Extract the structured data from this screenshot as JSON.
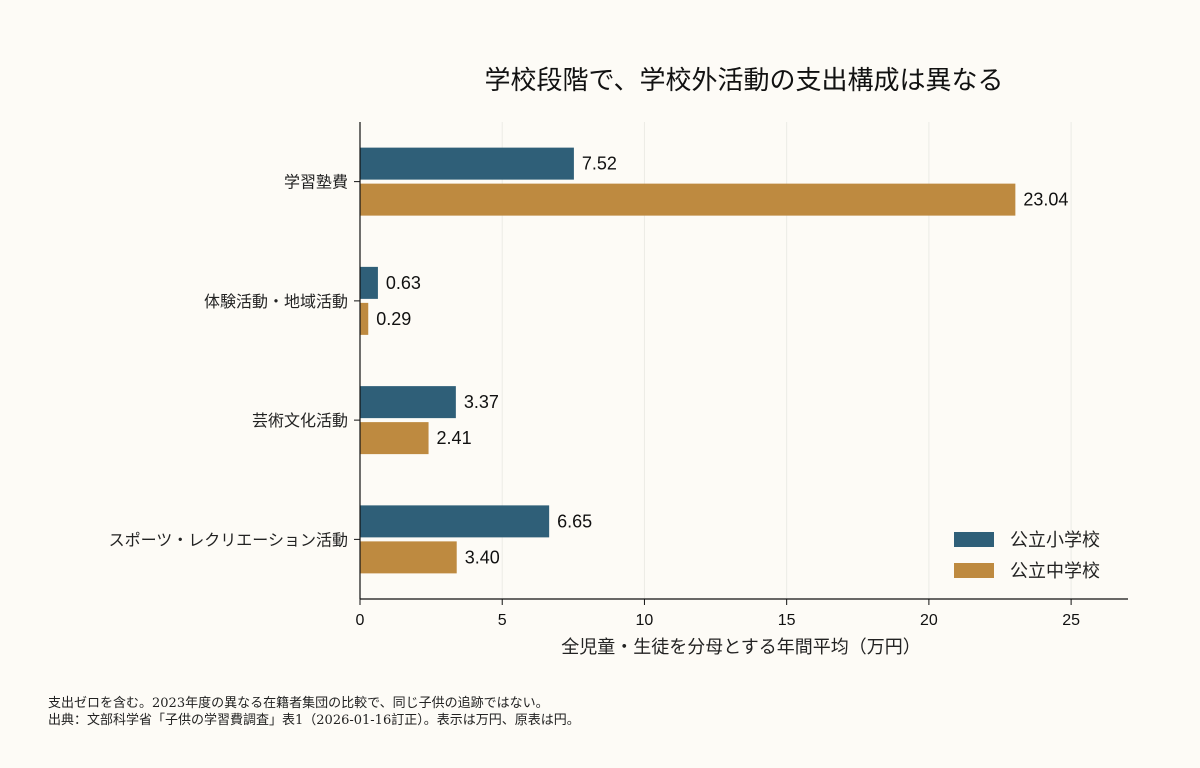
{
  "chart_data": {
    "type": "bar",
    "orientation": "horizontal",
    "title": "学校段階で、学校外活動の支出構成は異なる",
    "xlabel": "全児童・生徒を分母とする年間平均（万円）",
    "ylabel": "",
    "categories": [
      "学習塾費",
      "体験活動・地域活動",
      "芸術文化活動",
      "スポーツ・レクリエーション活動"
    ],
    "series": [
      {
        "name": "公立小学校",
        "values": [
          7.52,
          0.63,
          3.37,
          6.65
        ],
        "labels": [
          "7.52",
          "0.63",
          "3.37",
          "6.65"
        ],
        "color": "#2f5f78"
      },
      {
        "name": "公立中学校",
        "values": [
          23.04,
          0.29,
          2.41,
          3.4
        ],
        "labels": [
          "23.04",
          "0.29",
          "2.41",
          "3.40"
        ],
        "color": "#be8a40"
      }
    ],
    "xlim": [
      0,
      27
    ],
    "xticks": [
      0,
      5,
      10,
      15,
      20,
      25
    ],
    "grid": "vertical",
    "legend_position": "bottom-right"
  },
  "footnotes": [
    "支出ゼロを含む。2023年度の異なる在籍者集団の比較で、同じ子供の追跡ではない。",
    "出典：文部科学省「子供の学習費調査」表1（2026-01-16訂正）。表示は万円、原表は円。"
  ],
  "colors": {
    "background": "#fdfbf6",
    "grid": "#ecebe6",
    "axis": "#111111"
  }
}
